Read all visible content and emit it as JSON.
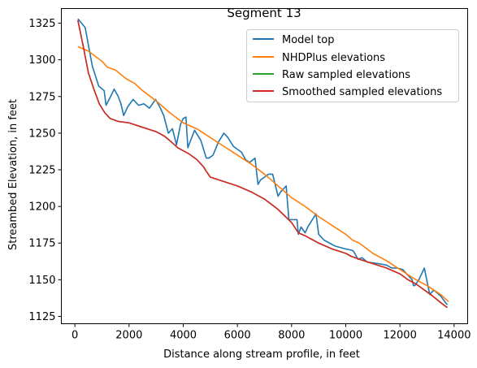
{
  "chart_data": {
    "type": "line",
    "title": "Segment 13",
    "xlabel": "Distance along stream profile, in feet",
    "ylabel": "Streambed Elevation, in feet",
    "xlim": [
      -500,
      14500
    ],
    "ylim": [
      1120,
      1335
    ],
    "xticks": [
      0,
      2000,
      4000,
      6000,
      8000,
      10000,
      12000,
      14000
    ],
    "yticks": [
      1125,
      1150,
      1175,
      1200,
      1225,
      1250,
      1275,
      1300,
      1325
    ],
    "xtick_labels": [
      "0",
      "2000",
      "4000",
      "6000",
      "8000",
      "10000",
      "12000",
      "14000"
    ],
    "ytick_labels": [
      "1125",
      "1150",
      "1175",
      "1200",
      "1225",
      "1250",
      "1275",
      "1300",
      "1325"
    ],
    "grid": false,
    "legend_position": "top-right",
    "series": [
      {
        "name": "Model top",
        "color": "#1f77b4",
        "x": [
          110,
          380,
          640,
          880,
          1080,
          1150,
          1320,
          1450,
          1600,
          1700,
          1800,
          1950,
          2150,
          2350,
          2550,
          2750,
          2980,
          3130,
          3280,
          3450,
          3600,
          3750,
          3900,
          4000,
          4100,
          4170,
          4250,
          4420,
          4650,
          4850,
          4950,
          5100,
          5300,
          5500,
          5650,
          5850,
          6150,
          6300,
          6450,
          6650,
          6760,
          6850,
          7000,
          7150,
          7300,
          7500,
          7600,
          7800,
          7900,
          8200,
          8250,
          8350,
          8500,
          8600,
          8800,
          8900,
          9000,
          9200,
          9400,
          9600,
          10000,
          10250,
          10300,
          10450,
          10600,
          10800,
          11200,
          11500,
          11700,
          11900,
          12100,
          12300,
          12450,
          12500,
          12550,
          12700,
          12900,
          13100,
          13250,
          13500,
          13700,
          13750
        ],
        "y": [
          1328,
          1322,
          1296,
          1282,
          1279,
          1269,
          1275,
          1280,
          1275,
          1270,
          1262,
          1268,
          1273,
          1269,
          1270,
          1267,
          1273,
          1268,
          1262,
          1250,
          1253,
          1242,
          1256,
          1260,
          1261,
          1240,
          1244,
          1252,
          1245,
          1233,
          1233,
          1235,
          1244,
          1250,
          1247,
          1241,
          1237,
          1232,
          1230,
          1233,
          1215,
          1218,
          1220,
          1222,
          1222,
          1207,
          1210,
          1214,
          1191,
          1191,
          1181,
          1186,
          1182,
          1186,
          1192,
          1195,
          1181,
          1177,
          1175,
          1173,
          1171,
          1170,
          1169,
          1164,
          1165,
          1162,
          1161,
          1160,
          1158,
          1158,
          1157,
          1153,
          1150,
          1146,
          1146,
          1150,
          1158,
          1140,
          1143,
          1139,
          1134,
          1133
        ]
      },
      {
        "name": "NHDPlus elevations",
        "color": "#ff7f0e",
        "x": [
          110,
          500,
          1000,
          1200,
          1500,
          1700,
          1900,
          2200,
          2500,
          3000,
          3500,
          4000,
          4500,
          5000,
          5500,
          6000,
          6500,
          7000,
          7500,
          8000,
          8500,
          9000,
          9500,
          10000,
          10250,
          10500,
          11000,
          11500,
          12000,
          12500,
          13000,
          13500,
          13800
        ],
        "y": [
          1309,
          1306,
          1299,
          1295,
          1293,
          1290,
          1287,
          1284,
          1279,
          1272,
          1264,
          1257,
          1253,
          1247,
          1241,
          1235,
          1229,
          1222,
          1214,
          1206,
          1200,
          1193,
          1187,
          1181,
          1177,
          1175,
          1168,
          1163,
          1157,
          1151,
          1146,
          1140,
          1135
        ]
      },
      {
        "name": "Raw sampled elevations",
        "color": "#2ca02c",
        "x": [
          110,
          300,
          500,
          700,
          900,
          1100,
          1300,
          1600,
          2000,
          2500,
          3000,
          3300,
          3500,
          3800,
          4000,
          4200,
          4500,
          4750,
          4850,
          5000,
          5500,
          6000,
          6500,
          7000,
          7500,
          8000,
          8250,
          8500,
          9000,
          9500,
          10000,
          10200,
          10500,
          11000,
          11500,
          12000,
          12300,
          12600,
          12900,
          13200,
          13400,
          13600,
          13750
        ],
        "y": [
          1327,
          1310,
          1291,
          1280,
          1270,
          1264,
          1260,
          1258,
          1257,
          1254,
          1251,
          1248,
          1245,
          1240,
          1238,
          1236,
          1232,
          1227,
          1224,
          1220,
          1217,
          1214,
          1210,
          1205,
          1198,
          1189,
          1182,
          1180,
          1175,
          1171,
          1168,
          1166,
          1164,
          1161,
          1158,
          1154,
          1150,
          1147,
          1143,
          1139,
          1136,
          1133,
          1131
        ]
      },
      {
        "name": "Smoothed sampled elevations",
        "color": "#d62728",
        "x": [
          110,
          300,
          500,
          700,
          900,
          1100,
          1300,
          1600,
          2000,
          2500,
          3000,
          3300,
          3500,
          3800,
          4000,
          4200,
          4500,
          4750,
          4850,
          5000,
          5500,
          6000,
          6500,
          7000,
          7500,
          8000,
          8250,
          8500,
          9000,
          9500,
          10000,
          10200,
          10500,
          11000,
          11500,
          12000,
          12300,
          12600,
          12900,
          13200,
          13400,
          13600,
          13750
        ],
        "y": [
          1327,
          1310,
          1291,
          1280,
          1270,
          1264,
          1260,
          1258,
          1257,
          1254,
          1251,
          1248,
          1245,
          1240,
          1238,
          1236,
          1232,
          1227,
          1224,
          1220,
          1217,
          1214,
          1210,
          1205,
          1198,
          1189,
          1182,
          1180,
          1175,
          1171,
          1168,
          1166,
          1164,
          1161,
          1158,
          1154,
          1150,
          1147,
          1143,
          1139,
          1136,
          1133,
          1131
        ]
      }
    ]
  }
}
